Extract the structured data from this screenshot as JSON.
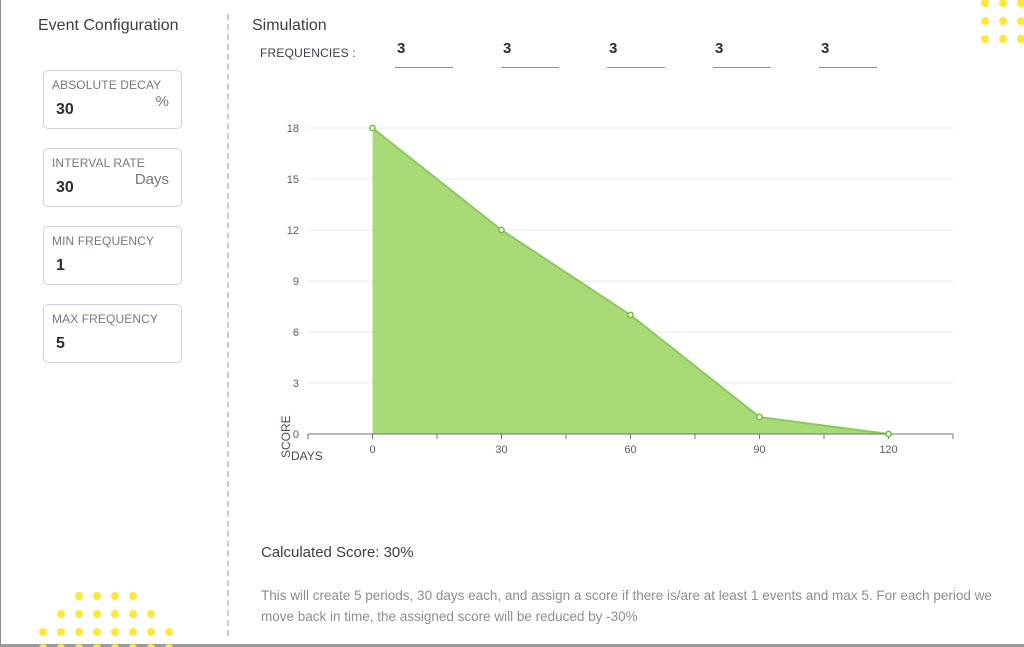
{
  "event_configuration": {
    "title": "Event Configuration",
    "fields": [
      {
        "label": "ABSOLUTE DECAY",
        "value": "30",
        "unit": "%"
      },
      {
        "label": "INTERVAL RATE",
        "value": "30",
        "unit": "Days"
      },
      {
        "label": "MIN FREQUENCY",
        "value": "1"
      },
      {
        "label": "MAX FREQUENCY",
        "value": "5"
      }
    ]
  },
  "simulation": {
    "title": "Simulation",
    "frequencies_label": "FREQUENCIES :",
    "frequencies": [
      "3",
      "3",
      "3",
      "3",
      "3"
    ],
    "calculated_score": "Calculated Score: 30%",
    "description": "This will create 5 periods, 30 days each, and assign a score if there is/are at least 1 events and max 5. For each period we move back in time, the assigned score will be reduced by -30%"
  },
  "chart_data": {
    "type": "area",
    "x": [
      0,
      30,
      60,
      90,
      120
    ],
    "y": [
      18,
      12,
      7,
      1,
      0
    ],
    "xticks": [
      "0",
      "30",
      "60",
      "90",
      "120"
    ],
    "yticks": [
      "0",
      "3",
      "6",
      "9",
      "12",
      "15",
      "18"
    ],
    "xlabel": "DAYS",
    "ylabel": "SCORE",
    "xlim": [
      -15,
      135
    ],
    "ylim": [
      0,
      18
    ],
    "grid": true,
    "fill_color": "#a3d86f",
    "line_color": "#8bcb5a",
    "point_color": "#6fbf3a"
  },
  "decor": {
    "dot_color": "#fde83a"
  }
}
